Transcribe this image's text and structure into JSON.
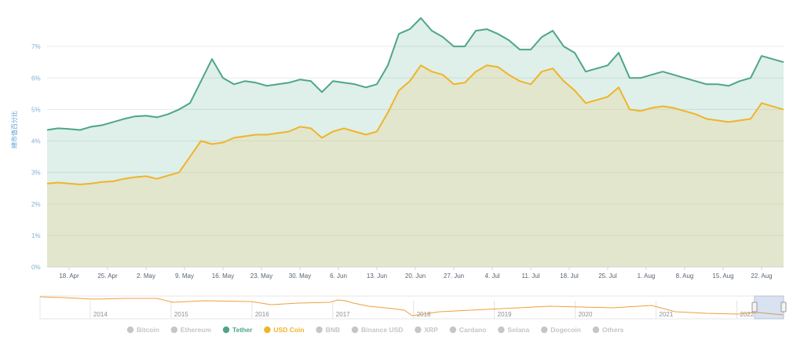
{
  "chart_data": {
    "type": "area",
    "ylabel": "總市值百分比",
    "y_unit": "%",
    "ylim": [
      0,
      8
    ],
    "y_ticks": [
      "0%",
      "1%",
      "2%",
      "3%",
      "4%",
      "5%",
      "6%",
      "7%"
    ],
    "x_range": [
      "2022-04-14",
      "2022-08-26"
    ],
    "x_ticks": [
      "18. Apr",
      "25. Apr",
      "2. May",
      "9. May",
      "16. May",
      "23. May",
      "30. May",
      "6. Jun",
      "13. Jun",
      "20. Jun",
      "27. Jun",
      "4. Jul",
      "11. Jul",
      "18. Jul",
      "25. Jul",
      "1. Aug",
      "8. Aug",
      "15. Aug",
      "22. Aug"
    ],
    "grid": true,
    "x": [
      "2022-04-14",
      "2022-04-16",
      "2022-04-18",
      "2022-04-20",
      "2022-04-22",
      "2022-04-24",
      "2022-04-26",
      "2022-04-28",
      "2022-04-30",
      "2022-05-02",
      "2022-05-04",
      "2022-05-06",
      "2022-05-08",
      "2022-05-10",
      "2022-05-12",
      "2022-05-14",
      "2022-05-16",
      "2022-05-18",
      "2022-05-20",
      "2022-05-22",
      "2022-05-24",
      "2022-05-26",
      "2022-05-28",
      "2022-05-30",
      "2022-06-01",
      "2022-06-03",
      "2022-06-05",
      "2022-06-07",
      "2022-06-09",
      "2022-06-11",
      "2022-06-13",
      "2022-06-15",
      "2022-06-17",
      "2022-06-19",
      "2022-06-21",
      "2022-06-23",
      "2022-06-25",
      "2022-06-27",
      "2022-06-29",
      "2022-07-01",
      "2022-07-03",
      "2022-07-05",
      "2022-07-07",
      "2022-07-09",
      "2022-07-11",
      "2022-07-13",
      "2022-07-15",
      "2022-07-17",
      "2022-07-19",
      "2022-07-21",
      "2022-07-23",
      "2022-07-25",
      "2022-07-27",
      "2022-07-29",
      "2022-07-31",
      "2022-08-02",
      "2022-08-04",
      "2022-08-06",
      "2022-08-08",
      "2022-08-10",
      "2022-08-12",
      "2022-08-14",
      "2022-08-16",
      "2022-08-18",
      "2022-08-20",
      "2022-08-22",
      "2022-08-24",
      "2022-08-26"
    ],
    "series": [
      {
        "name": "Tether",
        "color": "#4ea58a",
        "values": [
          4.35,
          4.4,
          4.38,
          4.35,
          4.45,
          4.5,
          4.6,
          4.7,
          4.78,
          4.8,
          4.75,
          4.85,
          5.0,
          5.2,
          5.9,
          6.6,
          6.0,
          5.8,
          5.9,
          5.85,
          5.75,
          5.8,
          5.85,
          5.95,
          5.9,
          5.55,
          5.9,
          5.85,
          5.8,
          5.7,
          5.8,
          6.4,
          7.4,
          7.55,
          7.9,
          7.5,
          7.3,
          7.0,
          7.0,
          7.5,
          7.55,
          7.4,
          7.2,
          6.9,
          6.9,
          7.3,
          7.5,
          7.0,
          6.8,
          6.2,
          6.3,
          6.4,
          6.8,
          6.0,
          6.0,
          6.1,
          6.2,
          6.1,
          6.0,
          5.9,
          5.8,
          5.8,
          5.75,
          5.9,
          6.0,
          6.7,
          6.6,
          6.5
        ]
      },
      {
        "name": "USD Coin",
        "color": "#f0b429",
        "values": [
          2.65,
          2.68,
          2.65,
          2.62,
          2.65,
          2.7,
          2.72,
          2.8,
          2.85,
          2.88,
          2.8,
          2.9,
          3.0,
          3.5,
          4.0,
          3.9,
          3.95,
          4.1,
          4.15,
          4.2,
          4.2,
          4.25,
          4.3,
          4.45,
          4.4,
          4.1,
          4.3,
          4.4,
          4.3,
          4.2,
          4.3,
          4.9,
          5.6,
          5.9,
          6.4,
          6.2,
          6.1,
          5.8,
          5.85,
          6.2,
          6.4,
          6.35,
          6.1,
          5.9,
          5.8,
          6.2,
          6.3,
          5.9,
          5.6,
          5.2,
          5.3,
          5.4,
          5.7,
          5.0,
          4.95,
          5.05,
          5.1,
          5.05,
          4.95,
          4.85,
          4.7,
          4.65,
          4.6,
          4.65,
          4.7,
          5.2,
          5.1,
          5.0
        ]
      }
    ],
    "navigator": {
      "labels": [
        "2014",
        "2015",
        "2016",
        "2017",
        "2018",
        "2019",
        "2020",
        "2021",
        "2022"
      ]
    },
    "legend": {
      "placement": "bottom",
      "items": [
        {
          "label": "Bitcoin",
          "active": false,
          "color": "#c4c6c9"
        },
        {
          "label": "Ethereum",
          "active": false,
          "color": "#c4c6c9"
        },
        {
          "label": "Tether",
          "active": true,
          "color": "#4ea58a"
        },
        {
          "label": "USD Coin",
          "active": true,
          "color": "#f0b429"
        },
        {
          "label": "BNB",
          "active": false,
          "color": "#c4c6c9"
        },
        {
          "label": "Binance USD",
          "active": false,
          "color": "#c4c6c9"
        },
        {
          "label": "XRP",
          "active": false,
          "color": "#c4c6c9"
        },
        {
          "label": "Cardano",
          "active": false,
          "color": "#c4c6c9"
        },
        {
          "label": "Solana",
          "active": false,
          "color": "#c4c6c9"
        },
        {
          "label": "Dogecoin",
          "active": false,
          "color": "#c4c6c9"
        },
        {
          "label": "Others",
          "active": false,
          "color": "#c4c6c9"
        }
      ]
    }
  }
}
